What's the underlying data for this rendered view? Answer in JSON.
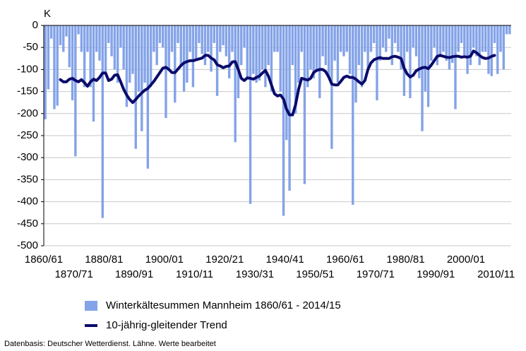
{
  "chart_data": {
    "type": "bar-line",
    "y_label": "K",
    "source": "Datenbasis: Deutscher Wetterdienst. Lähne. Werte bearbeitet",
    "ylim": [
      0,
      -500
    ],
    "yticks": [
      0,
      -50,
      -100,
      -150,
      -200,
      -250,
      -300,
      -350,
      -400,
      -450,
      -500
    ],
    "grid": true,
    "categories": [
      "1860/61",
      null,
      null,
      null,
      null,
      null,
      null,
      null,
      null,
      null,
      "1870/71",
      null,
      null,
      null,
      null,
      null,
      null,
      null,
      null,
      null,
      "1880/81",
      null,
      null,
      null,
      null,
      null,
      null,
      null,
      null,
      null,
      "1890/91",
      null,
      null,
      null,
      null,
      null,
      null,
      null,
      null,
      null,
      "1900/01",
      null,
      null,
      null,
      null,
      null,
      null,
      null,
      null,
      null,
      "1910/11",
      null,
      null,
      null,
      null,
      null,
      null,
      null,
      null,
      null,
      "1920/21",
      null,
      null,
      null,
      null,
      null,
      null,
      null,
      null,
      null,
      "1930/31",
      null,
      null,
      null,
      null,
      null,
      null,
      null,
      null,
      null,
      "1940/41",
      null,
      null,
      null,
      null,
      null,
      null,
      null,
      null,
      null,
      "1950/51",
      null,
      null,
      null,
      null,
      null,
      null,
      null,
      null,
      null,
      "1960/61",
      null,
      null,
      null,
      null,
      null,
      null,
      null,
      null,
      null,
      "1970/71",
      null,
      null,
      null,
      null,
      null,
      null,
      null,
      null,
      null,
      "1980/81",
      null,
      null,
      null,
      null,
      null,
      null,
      null,
      null,
      null,
      "1990/91",
      null,
      null,
      null,
      null,
      null,
      null,
      null,
      null,
      null,
      "2000/01",
      null,
      null,
      null,
      null,
      null,
      null,
      null,
      null,
      null,
      "2010/11",
      null,
      null,
      null,
      null
    ],
    "series": [
      {
        "name": "Winterkältesummen Mannheim 1860/61 - 2014/15",
        "type": "bar",
        "color": "#84a3e8",
        "values": [
          -213,
          -145,
          -30,
          -190,
          -182,
          -45,
          -60,
          -25,
          -95,
          -170,
          -297,
          -20,
          -60,
          -140,
          -60,
          -140,
          -218,
          -60,
          -80,
          -437,
          -110,
          -40,
          -70,
          -100,
          -130,
          -50,
          -100,
          -185,
          -130,
          -110,
          -280,
          -150,
          -240,
          -130,
          -325,
          -140,
          -60,
          -90,
          -40,
          -50,
          -210,
          -100,
          -60,
          -175,
          -40,
          -90,
          -150,
          -130,
          -60,
          -140,
          -80,
          -40,
          -65,
          -90,
          -60,
          -105,
          -40,
          -160,
          -60,
          -45,
          -70,
          -120,
          -60,
          -265,
          -165,
          -90,
          -50,
          -120,
          -405,
          -110,
          -130,
          -125,
          -100,
          -140,
          -90,
          -150,
          -60,
          -60,
          -150,
          -432,
          -260,
          -375,
          -90,
          -200,
          -130,
          -60,
          -360,
          -140,
          -100,
          -120,
          -100,
          -165,
          -70,
          -90,
          -120,
          -280,
          -80,
          -130,
          -60,
          -70,
          -60,
          -110,
          -407,
          -175,
          -90,
          -140,
          -60,
          -100,
          -60,
          -40,
          -170,
          -80,
          -50,
          -60,
          -30,
          -90,
          -40,
          -60,
          -100,
          -160,
          -60,
          -165,
          -50,
          -70,
          -120,
          -240,
          -150,
          -185,
          -80,
          -50,
          -90,
          -70,
          -60,
          -80,
          -100,
          -85,
          -190,
          -60,
          -40,
          -70,
          -110,
          -90,
          -50,
          -70,
          -90,
          -60,
          -60,
          -110,
          -115,
          -40,
          -110,
          -60,
          -100,
          -20,
          -20
        ]
      },
      {
        "name": "10-jährig-gleitender Trend",
        "type": "line",
        "color": "#0b0b6b",
        "values": [
          null,
          null,
          null,
          null,
          null,
          -123,
          -128,
          -128,
          -122,
          -120,
          -125,
          -128,
          -123,
          -130,
          -138,
          -128,
          -122,
          -125,
          -118,
          -108,
          -108,
          -125,
          -122,
          -113,
          -112,
          -128,
          -145,
          -158,
          -168,
          -175,
          -168,
          -160,
          -153,
          -147,
          -143,
          -135,
          -127,
          -117,
          -107,
          -97,
          -95,
          -100,
          -107,
          -107,
          -99,
          -91,
          -85,
          -82,
          -80,
          -80,
          -78,
          -76,
          -74,
          -68,
          -68,
          -74,
          -78,
          -89,
          -92,
          -96,
          -93,
          -92,
          -83,
          -82,
          -100,
          -120,
          -125,
          -119,
          -120,
          -122,
          -118,
          -115,
          -108,
          -102,
          -115,
          -135,
          -155,
          -160,
          -158,
          -167,
          -190,
          -203,
          -203,
          -180,
          -145,
          -120,
          -122,
          -124,
          -120,
          -107,
          -102,
          -100,
          -100,
          -105,
          -117,
          -133,
          -135,
          -135,
          -127,
          -118,
          -115,
          -118,
          -118,
          -122,
          -128,
          -133,
          -125,
          -100,
          -85,
          -78,
          -75,
          -73,
          -75,
          -75,
          -75,
          -71,
          -70,
          -72,
          -75,
          -97,
          -110,
          -117,
          -113,
          -103,
          -99,
          -96,
          -95,
          -98,
          -90,
          -80,
          -70,
          -68,
          -70,
          -72,
          -73,
          -71,
          -70,
          -70,
          -72,
          -71,
          -72,
          -70,
          -58,
          -62,
          -68,
          -73,
          -75,
          -74,
          -70,
          -68,
          null,
          null,
          null,
          null,
          null
        ]
      }
    ]
  }
}
